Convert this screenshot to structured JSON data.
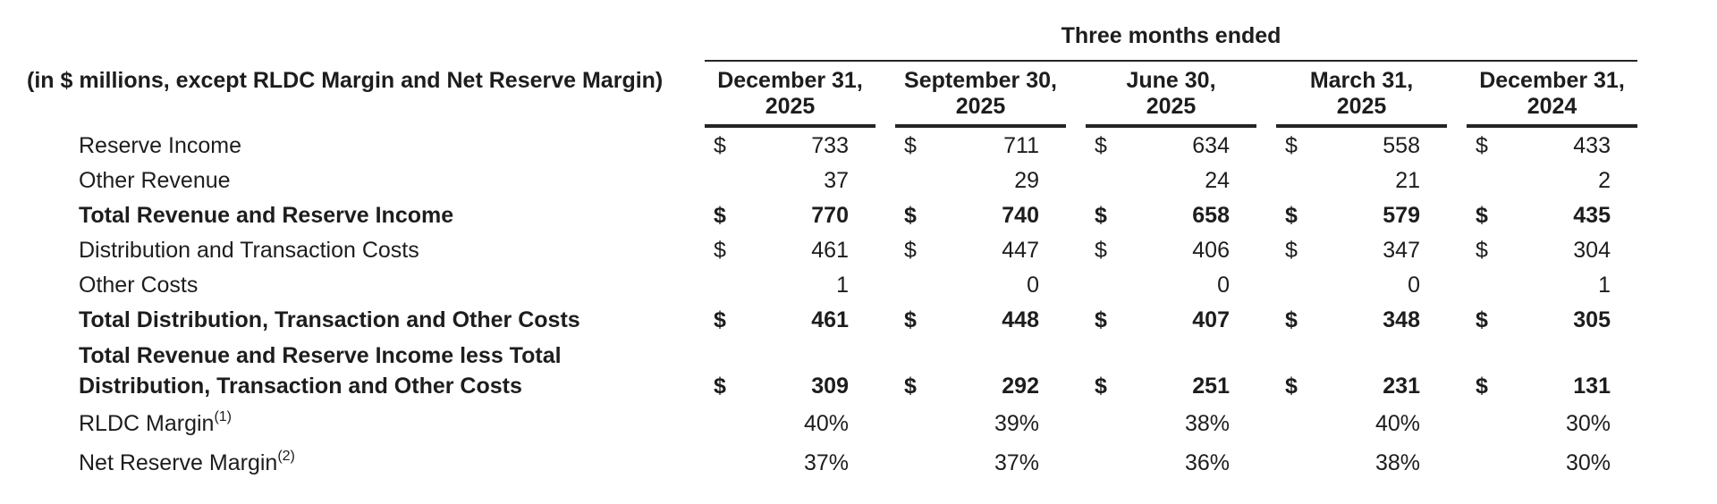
{
  "table": {
    "span_header": "Three months ended",
    "row_label_header": "(in $ millions, except RLDC Margin and Net Reserve Margin)",
    "columns": [
      {
        "line1": "December 31,",
        "line2": "2025"
      },
      {
        "line1": "September 30,",
        "line2": "2025"
      },
      {
        "line1": "June 30,",
        "line2": "2025"
      },
      {
        "line1": "March 31,",
        "line2": "2025"
      },
      {
        "line1": "December 31,",
        "line2": "2024"
      }
    ],
    "rows": [
      {
        "label": "Reserve Income",
        "sup": "",
        "currency": "$",
        "bold": false,
        "two_line": false,
        "pct": false,
        "values": [
          "733",
          "711",
          "634",
          "558",
          "433"
        ]
      },
      {
        "label": "Other Revenue",
        "sup": "",
        "currency": "",
        "bold": false,
        "two_line": false,
        "pct": false,
        "values": [
          "37",
          "29",
          "24",
          "21",
          "2"
        ]
      },
      {
        "label": "Total Revenue and Reserve Income",
        "sup": "",
        "currency": "$",
        "bold": true,
        "two_line": false,
        "pct": false,
        "values": [
          "770",
          "740",
          "658",
          "579",
          "435"
        ]
      },
      {
        "label": "Distribution and Transaction Costs",
        "sup": "",
        "currency": "$",
        "bold": false,
        "two_line": false,
        "pct": false,
        "values": [
          "461",
          "447",
          "406",
          "347",
          "304"
        ]
      },
      {
        "label": "Other Costs",
        "sup": "",
        "currency": "",
        "bold": false,
        "two_line": false,
        "pct": false,
        "values": [
          "1",
          "0",
          "0",
          "0",
          "1"
        ]
      },
      {
        "label": "Total Distribution, Transaction and Other Costs",
        "sup": "",
        "currency": "$",
        "bold": true,
        "two_line": false,
        "pct": false,
        "values": [
          "461",
          "448",
          "407",
          "348",
          "305"
        ]
      },
      {
        "label": "Total Revenue and Reserve Income less Total Distribution, Transaction and Other Costs",
        "sup": "",
        "currency": "$",
        "bold": true,
        "two_line": true,
        "pct": false,
        "values": [
          "309",
          "292",
          "251",
          "231",
          "131"
        ]
      },
      {
        "label": "RLDC Margin",
        "sup": "(1)",
        "currency": "",
        "bold": false,
        "two_line": false,
        "pct": true,
        "values": [
          "40%",
          "39%",
          "38%",
          "40%",
          "30%"
        ]
      },
      {
        "label": "Net Reserve Margin",
        "sup": "(2)",
        "currency": "",
        "bold": false,
        "two_line": false,
        "pct": true,
        "values": [
          "37%",
          "37%",
          "36%",
          "38%",
          "30%"
        ]
      }
    ]
  }
}
